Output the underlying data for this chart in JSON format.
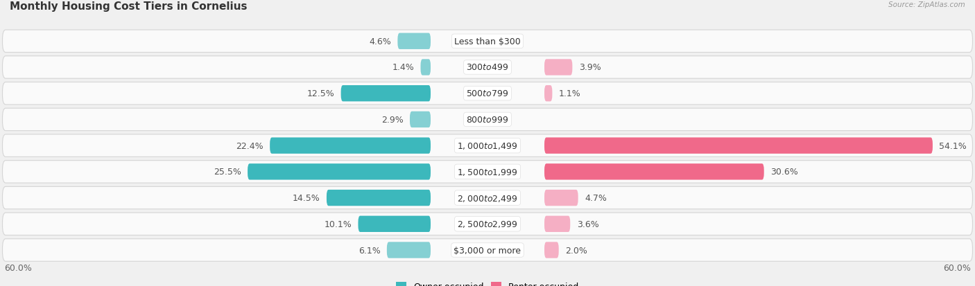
{
  "title": "Monthly Housing Cost Tiers in Cornelius",
  "source": "Source: ZipAtlas.com",
  "categories": [
    "Less than $300",
    "$300 to $499",
    "$500 to $799",
    "$800 to $999",
    "$1,000 to $1,499",
    "$1,500 to $1,999",
    "$2,000 to $2,499",
    "$2,500 to $2,999",
    "$3,000 or more"
  ],
  "owner_values": [
    4.6,
    1.4,
    12.5,
    2.9,
    22.4,
    25.5,
    14.5,
    10.1,
    6.1
  ],
  "renter_values": [
    0.0,
    3.9,
    1.1,
    0.0,
    54.1,
    30.6,
    4.7,
    3.6,
    2.0
  ],
  "owner_color_dark": "#3cb8bc",
  "owner_color_light": "#85d0d3",
  "renter_color_dark": "#f0698a",
  "renter_color_light": "#f5afc4",
  "axis_max": 60.0,
  "background_color": "#f0f0f0",
  "row_bg_color": "#fafafa",
  "title_fontsize": 11,
  "label_fontsize": 9,
  "category_fontsize": 9,
  "legend_fontsize": 9
}
